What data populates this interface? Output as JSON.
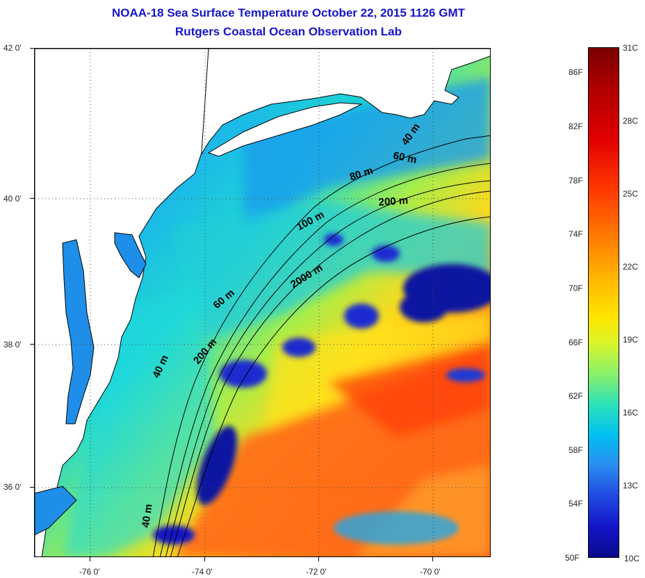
{
  "title": {
    "line1": "NOAA-18 Sea Surface Temperature October 22, 2015 1126 GMT",
    "line2": "Rutgers Coastal Ocean Observation Lab"
  },
  "map": {
    "lat_labels": [
      "42 0'",
      "40 0'",
      "38 0'",
      "36 0'"
    ],
    "lon_labels": [
      "-76 0'",
      "-74 0'",
      "-72 0'",
      "-70 0'"
    ],
    "contour_labels": [
      "40 m",
      "60 m",
      "80 m",
      "200 m",
      "100 m",
      "2000 m",
      "60 m",
      "200 m",
      "40 m",
      "40 m"
    ],
    "colors": {
      "land": "#ffffff",
      "cold": "#1414c8",
      "cool": "#1aa8f0",
      "mid": "#20d8c8",
      "warm": "#ffe41a",
      "hot": "#ff5a10"
    }
  },
  "colorbar": {
    "fahrenheit_labels": [
      "86F",
      "82F",
      "78F",
      "74F",
      "70F",
      "66F",
      "62F",
      "58F",
      "54F",
      "50F"
    ],
    "celsius_labels": [
      "31C",
      "28C",
      "25C",
      "22C",
      "19C",
      "16C",
      "13C",
      "10C"
    ]
  }
}
